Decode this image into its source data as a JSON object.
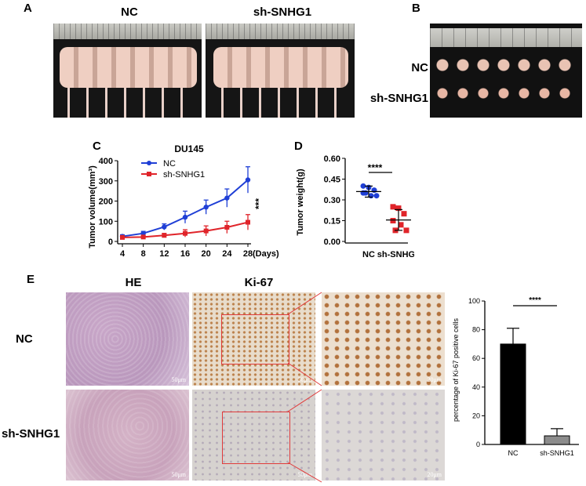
{
  "panels": {
    "A": "A",
    "B": "B",
    "C": "C",
    "D": "D",
    "E": "E"
  },
  "panel_a": {
    "groups": [
      "NC",
      "sh-SNHG1"
    ]
  },
  "panel_b": {
    "rows": [
      "NC",
      "sh-SNHG1"
    ]
  },
  "panel_e": {
    "row_labels": [
      "NC",
      "sh-SNHG1"
    ],
    "col_labels": [
      "HE",
      "Ki-67"
    ],
    "scalebar": "50μm",
    "scalebar_zoom": "20μm"
  },
  "colors": {
    "nc": "#1f3fd6",
    "sh": "#e0242a",
    "bar_nc": "#000000",
    "bar_sh": "#8c8c8c"
  },
  "chart_data": [
    {
      "id": "C",
      "type": "line",
      "title": "DU145",
      "ylabel": "Tumor volume(mm³)",
      "xlabel": "(Days)",
      "x": [
        4,
        8,
        12,
        16,
        20,
        24,
        28
      ],
      "ylim": [
        0,
        400
      ],
      "yticks": [
        0,
        100,
        200,
        300,
        400
      ],
      "series": [
        {
          "name": "NC",
          "values": [
            25,
            40,
            72,
            120,
            170,
            215,
            305
          ],
          "err": [
            8,
            10,
            15,
            30,
            35,
            45,
            65
          ]
        },
        {
          "name": "sh-SNHG1",
          "values": [
            20,
            22,
            30,
            40,
            52,
            70,
            95
          ],
          "err": [
            5,
            6,
            10,
            18,
            25,
            30,
            38
          ]
        }
      ],
      "significance": "***"
    },
    {
      "id": "D",
      "type": "scatter",
      "ylabel": "Tumor weight(g)",
      "categories": [
        "NC",
        "sh-SNHG1"
      ],
      "ylim": [
        0,
        0.6
      ],
      "yticks": [
        "0.00",
        "0.15",
        "0.30",
        "0.45",
        "0.60"
      ],
      "points": {
        "NC": [
          0.4,
          0.39,
          0.37,
          0.35,
          0.33,
          0.33,
          0.35
        ],
        "sh-SNHG1": [
          0.25,
          0.24,
          0.2,
          0.15,
          0.12,
          0.08,
          0.08
        ]
      },
      "mean": [
        0.36,
        0.155
      ],
      "sd": [
        0.04,
        0.075
      ],
      "significance": "****"
    },
    {
      "id": "E",
      "type": "bar",
      "ylabel": "percentage of Ki-67 positive cells",
      "categories": [
        "NC",
        "sh-SNHG1"
      ],
      "values": [
        70,
        6
      ],
      "err": [
        11,
        5
      ],
      "ylim": [
        0,
        100
      ],
      "yticks": [
        0,
        20,
        40,
        60,
        80,
        100
      ],
      "significance": "****"
    }
  ]
}
